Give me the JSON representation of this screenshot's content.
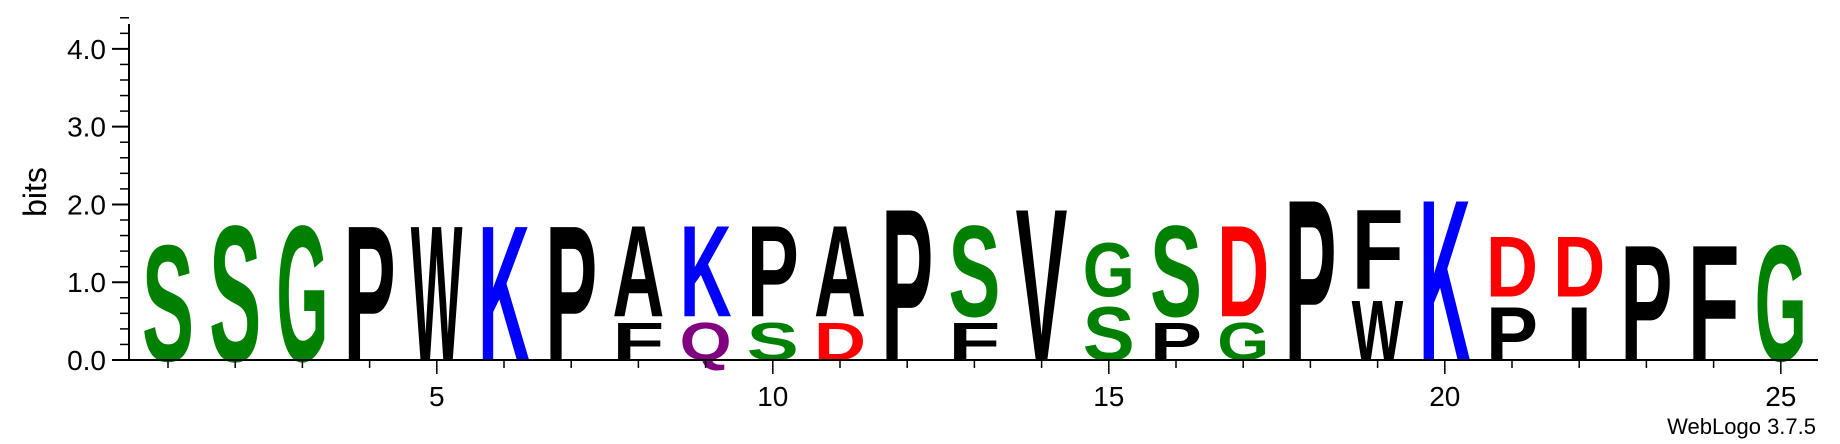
{
  "chart_data": {
    "type": "sequence-logo",
    "ylabel": "bits",
    "ylim": [
      0,
      4.32
    ],
    "yticks": [
      {
        "value": 0,
        "label": "0.0"
      },
      {
        "value": 1,
        "label": "1.0"
      },
      {
        "value": 2,
        "label": "2.0"
      },
      {
        "value": 3,
        "label": "3.0"
      },
      {
        "value": 4,
        "label": "4.0"
      }
    ],
    "xticks": [
      5,
      10,
      15,
      20,
      25
    ],
    "positions": [
      {
        "pos": 1,
        "stack": [
          {
            "letter": "S",
            "bits": 1.77
          }
        ]
      },
      {
        "pos": 2,
        "stack": [
          {
            "letter": "S",
            "bits": 2.07
          }
        ]
      },
      {
        "pos": 3,
        "stack": [
          {
            "letter": "G",
            "bits": 2.07
          }
        ]
      },
      {
        "pos": 4,
        "stack": [
          {
            "letter": "P",
            "bits": 2.07
          }
        ]
      },
      {
        "pos": 5,
        "stack": [
          {
            "letter": "W",
            "bits": 2.07
          }
        ]
      },
      {
        "pos": 6,
        "stack": [
          {
            "letter": "K",
            "bits": 2.07
          }
        ]
      },
      {
        "pos": 7,
        "stack": [
          {
            "letter": "P",
            "bits": 2.07
          }
        ]
      },
      {
        "pos": 8,
        "stack": [
          {
            "letter": "F",
            "bits": 0.57
          },
          {
            "letter": "A",
            "bits": 1.39
          }
        ]
      },
      {
        "pos": 9,
        "stack": [
          {
            "letter": "Q",
            "bits": 0.57
          },
          {
            "letter": "K",
            "bits": 1.39
          }
        ]
      },
      {
        "pos": 10,
        "stack": [
          {
            "letter": "S",
            "bits": 0.57
          },
          {
            "letter": "P",
            "bits": 1.39
          }
        ]
      },
      {
        "pos": 11,
        "stack": [
          {
            "letter": "D",
            "bits": 0.57
          },
          {
            "letter": "A",
            "bits": 1.39
          }
        ]
      },
      {
        "pos": 12,
        "stack": [
          {
            "letter": "P",
            "bits": 2.33
          }
        ]
      },
      {
        "pos": 13,
        "stack": [
          {
            "letter": "F",
            "bits": 0.57
          },
          {
            "letter": "S",
            "bits": 1.39
          }
        ]
      },
      {
        "pos": 14,
        "stack": [
          {
            "letter": "V",
            "bits": 2.33
          }
        ]
      },
      {
        "pos": 15,
        "stack": [
          {
            "letter": "S",
            "bits": 0.82
          },
          {
            "letter": "G",
            "bits": 0.82
          }
        ]
      },
      {
        "pos": 16,
        "stack": [
          {
            "letter": "P",
            "bits": 0.57
          },
          {
            "letter": "S",
            "bits": 1.39
          }
        ]
      },
      {
        "pos": 17,
        "stack": [
          {
            "letter": "G",
            "bits": 0.57
          },
          {
            "letter": "D",
            "bits": 1.39
          }
        ]
      },
      {
        "pos": 18,
        "stack": [
          {
            "letter": "P",
            "bits": 2.47
          }
        ]
      },
      {
        "pos": 19,
        "stack": [
          {
            "letter": "W",
            "bits": 0.92
          },
          {
            "letter": "F",
            "bits": 1.22
          }
        ]
      },
      {
        "pos": 20,
        "stack": [
          {
            "letter": "K",
            "bits": 2.47
          }
        ]
      },
      {
        "pos": 21,
        "stack": [
          {
            "letter": "P",
            "bits": 0.82
          },
          {
            "letter": "D",
            "bits": 0.92
          }
        ]
      },
      {
        "pos": 22,
        "stack": [
          {
            "letter": "I",
            "bits": 0.82
          },
          {
            "letter": "D",
            "bits": 0.92
          }
        ]
      },
      {
        "pos": 23,
        "stack": [
          {
            "letter": "P",
            "bits": 1.77
          }
        ]
      },
      {
        "pos": 24,
        "stack": [
          {
            "letter": "F",
            "bits": 1.77
          }
        ]
      },
      {
        "pos": 25,
        "stack": [
          {
            "letter": "G",
            "bits": 1.77
          }
        ]
      }
    ],
    "colors": {
      "S": "#008000",
      "G": "#008000",
      "K": "#0000ff",
      "D": "#ff0000",
      "Q": "#800080",
      "P": "#000000",
      "W": "#000000",
      "A": "#000000",
      "F": "#000000",
      "V": "#000000",
      "I": "#000000"
    },
    "grid": false
  },
  "footer": {
    "credit": "WebLogo 3.7.5"
  }
}
